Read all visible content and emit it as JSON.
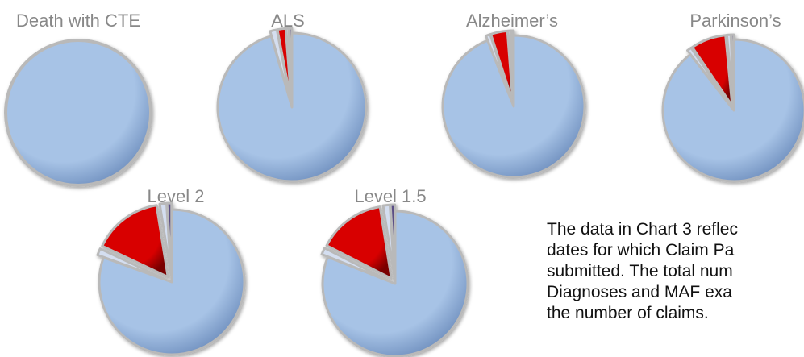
{
  "colors": {
    "main": "#a7c3e6",
    "main_dark": "#6f8fbe",
    "red": "#d80000",
    "red_dark": "#7a0000",
    "light": "#d4def0",
    "purple": "#5a4e86",
    "rim": "#b9b9b9"
  },
  "chart_data": [
    {
      "type": "pie",
      "title": "Death with CTE",
      "slices": [
        {
          "value": 100.0,
          "color": "main"
        }
      ]
    },
    {
      "type": "pie",
      "title": "ALS",
      "slices": [
        {
          "value": 95.5,
          "color": "main"
        },
        {
          "value": 1.5,
          "color": "light"
        },
        {
          "value": 1.8,
          "color": "red"
        },
        {
          "value": 0.6,
          "color": "light"
        },
        {
          "value": 0.6,
          "color": "purple"
        }
      ]
    },
    {
      "type": "pie",
      "title": "Alzheimer’s",
      "slices": [
        {
          "value": 94.0,
          "color": "main"
        },
        {
          "value": 1.0,
          "color": "light"
        },
        {
          "value": 3.8,
          "color": "red"
        },
        {
          "value": 0.7,
          "color": "light"
        },
        {
          "value": 0.5,
          "color": "purple"
        }
      ]
    },
    {
      "type": "pie",
      "title": "Parkinson’s",
      "slices": [
        {
          "value": 89.5,
          "color": "main"
        },
        {
          "value": 1.0,
          "color": "light"
        },
        {
          "value": 8.0,
          "color": "red"
        },
        {
          "value": 0.9,
          "color": "light"
        },
        {
          "value": 0.6,
          "color": "purple"
        }
      ]
    },
    {
      "type": "pie",
      "title": "Level 2",
      "slices": [
        {
          "value": 80.5,
          "color": "main"
        },
        {
          "value": 1.5,
          "color": "light"
        },
        {
          "value": 15.5,
          "color": "red"
        },
        {
          "value": 1.5,
          "color": "light"
        },
        {
          "value": 1.0,
          "color": "purple"
        }
      ]
    },
    {
      "type": "pie",
      "title": "Level 1.5",
      "slices": [
        {
          "value": 81.0,
          "color": "main"
        },
        {
          "value": 1.5,
          "color": "light"
        },
        {
          "value": 15.0,
          "color": "red"
        },
        {
          "value": 1.5,
          "color": "light"
        },
        {
          "value": 1.0,
          "color": "purple"
        }
      ]
    }
  ],
  "note": {
    "lines": [
      "The data in Chart 3 reflec",
      "dates for which Claim Pa",
      "submitted.  The total num",
      "Diagnoses and MAF exa",
      "the number of claims."
    ]
  }
}
